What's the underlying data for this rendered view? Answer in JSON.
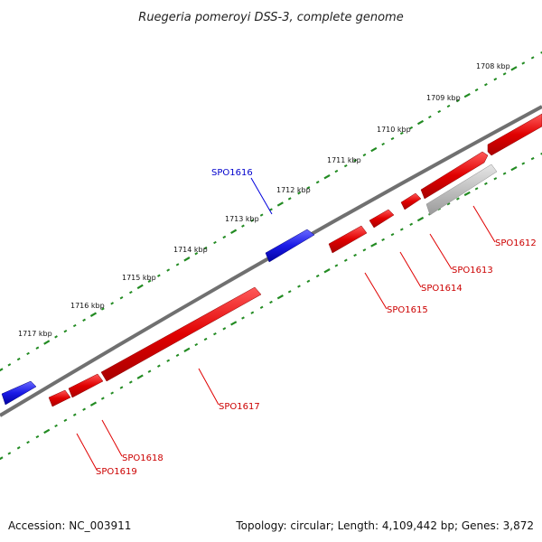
{
  "title": "Ruegeria pomeroyi DSS-3, complete genome",
  "footer": {
    "accession": "Accession: NC_003911",
    "topology": "Topology: circular; Length: 4,109,442 bp; Genes: 3,872"
  },
  "colors": {
    "forward_strand": "#e00000",
    "reverse_strand": "#1a1ae6",
    "pseudo_gene": "#c0c0c0",
    "backbone": "#707070",
    "ruler": "#228b22",
    "forward_label": "#cc0000",
    "reverse_label": "#0000cc"
  },
  "ticks": [
    "1708 kbp",
    "1709 kbp",
    "1710 kbp",
    "1711 kbp",
    "1712 kbp",
    "1713 kbp",
    "1714 kbp",
    "1715 kbp",
    "1716 kbp",
    "1717 kbp"
  ],
  "genes": [
    {
      "label": "SPO1612",
      "strand": "forward"
    },
    {
      "label": "SPO1613",
      "strand": "forward"
    },
    {
      "label": "SPO1614",
      "strand": "forward"
    },
    {
      "label": "SPO1615",
      "strand": "forward"
    },
    {
      "label": "SPO1616",
      "strand": "reverse"
    },
    {
      "label": "SPO1617",
      "strand": "forward"
    },
    {
      "label": "SPO1618",
      "strand": "forward"
    },
    {
      "label": "SPO1619",
      "strand": "forward"
    }
  ]
}
